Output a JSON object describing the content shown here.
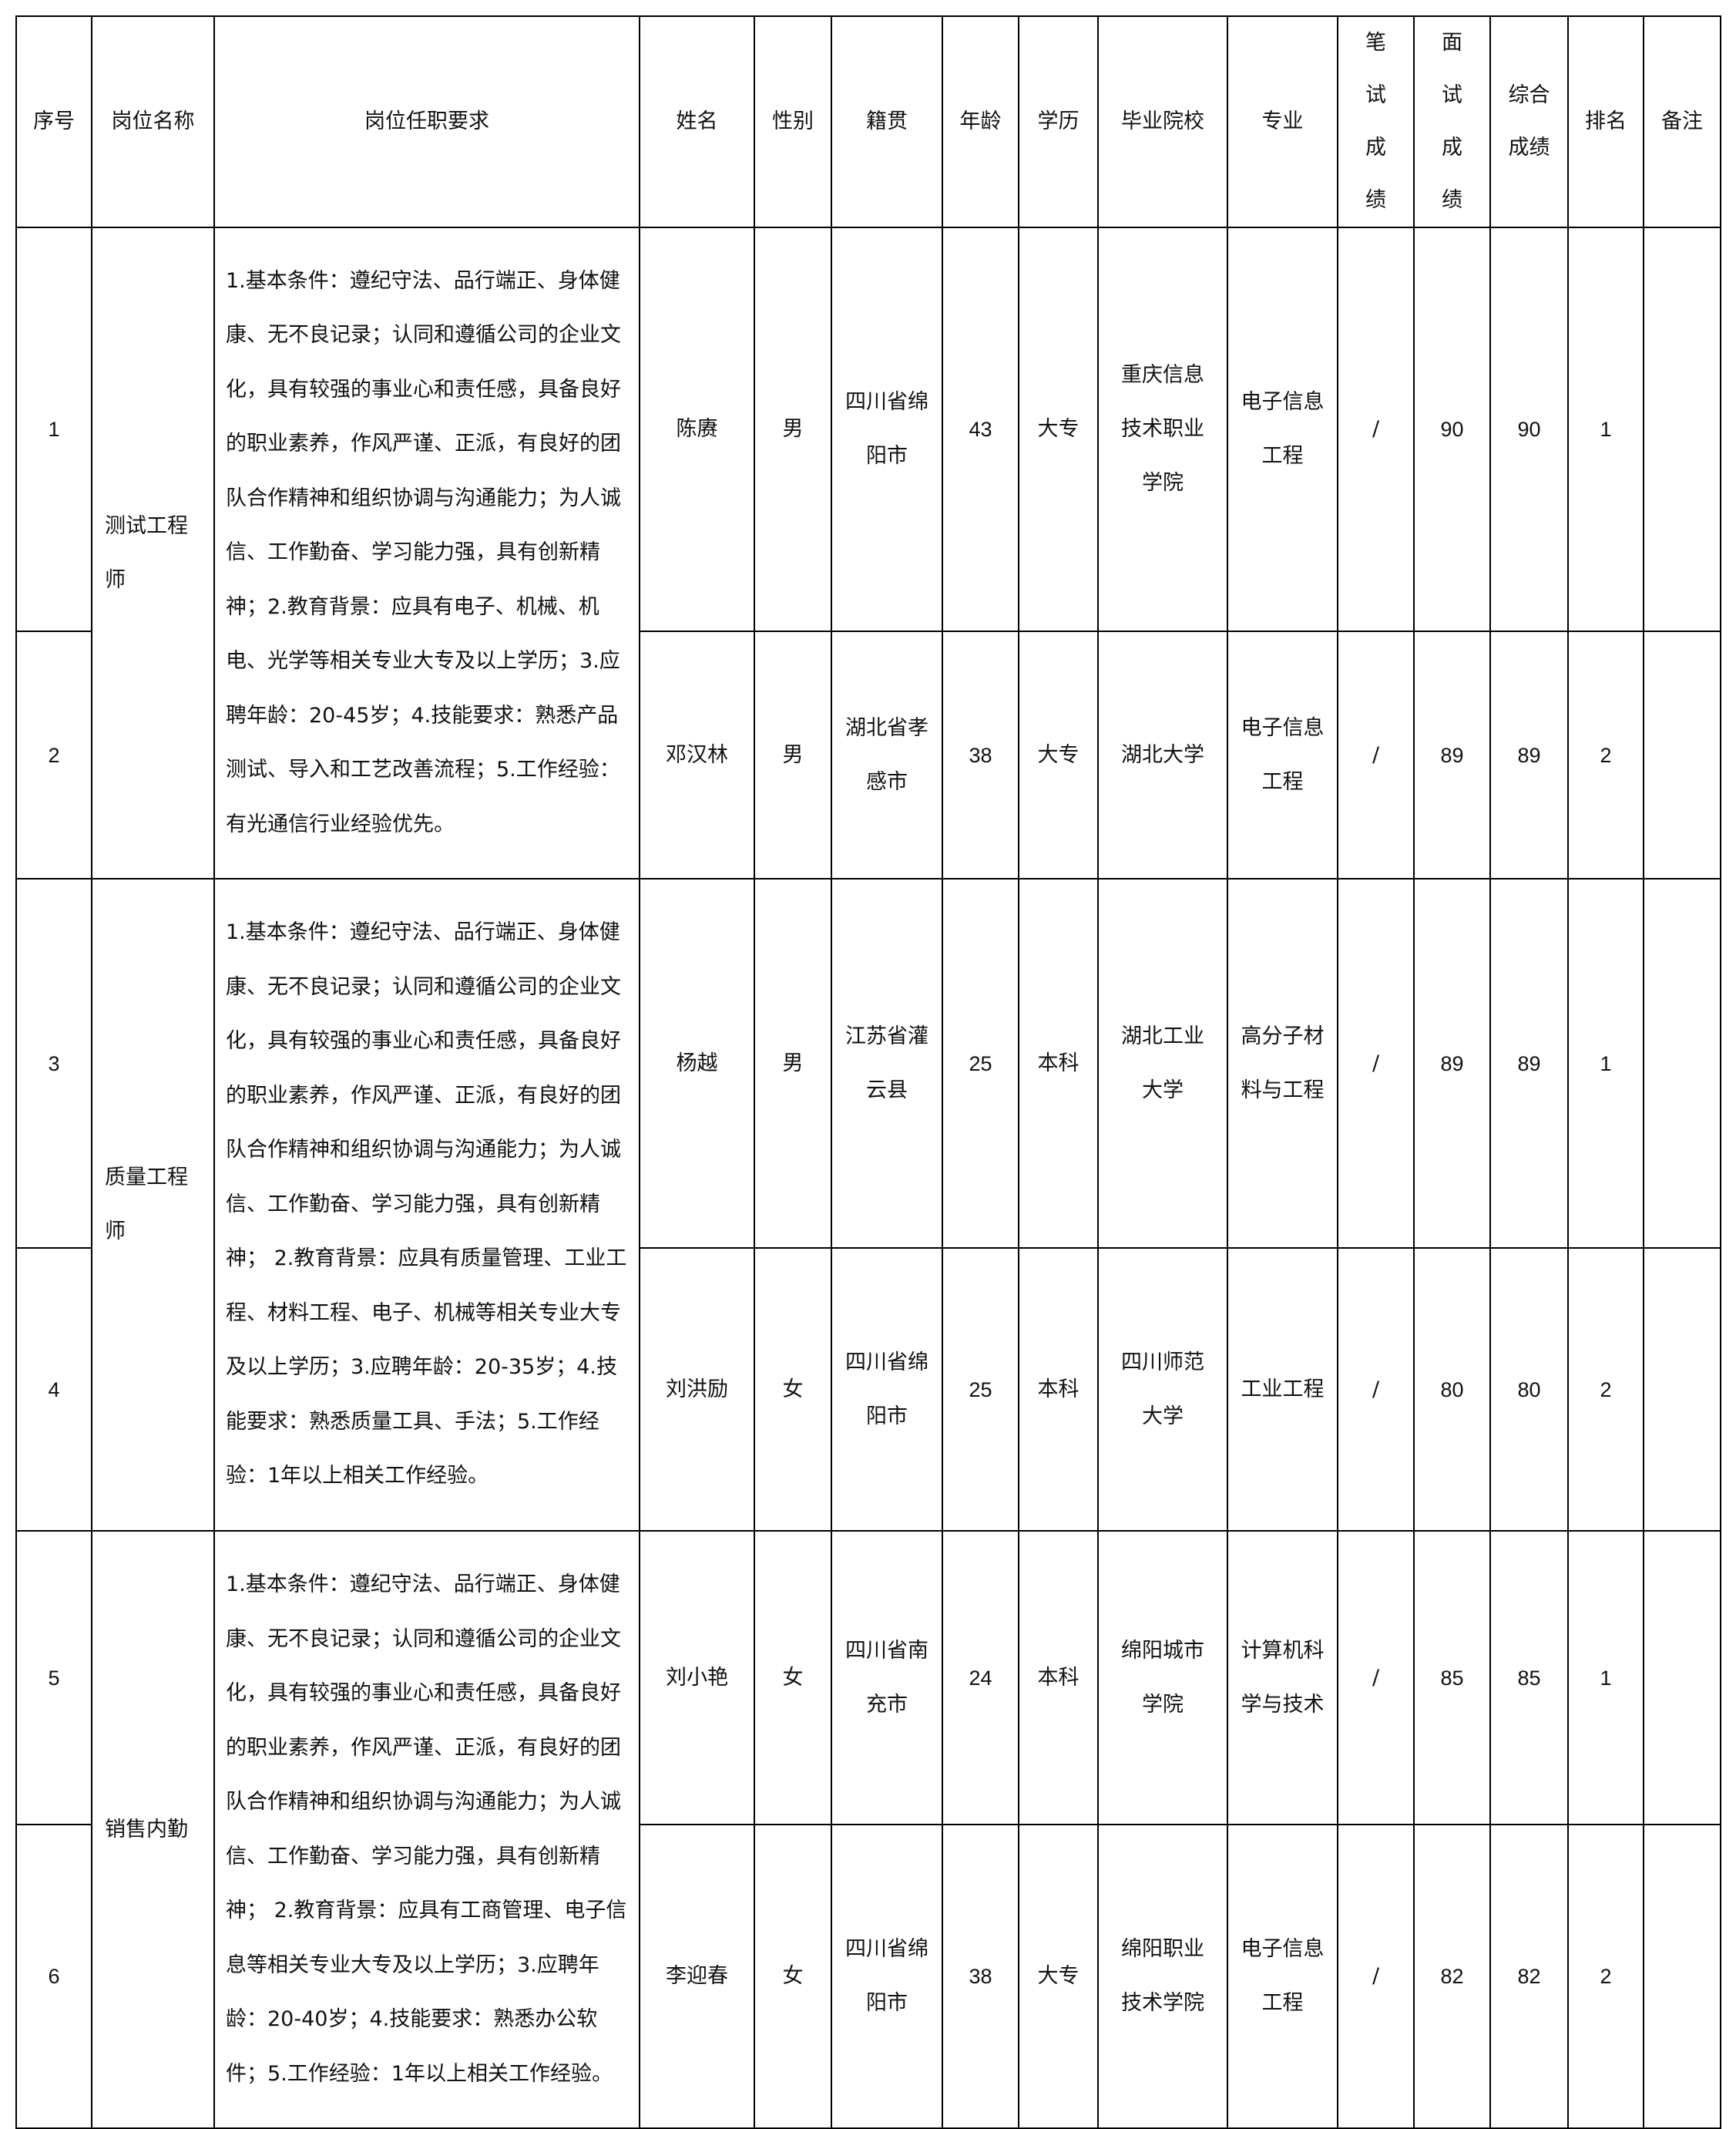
{
  "headers": [
    "序号",
    "岗位名称",
    "岗位任职要求",
    "姓名",
    "性别",
    "籍贯",
    "年龄",
    "学历",
    "毕业院校",
    "专业",
    "笔试成绩",
    "面试成绩",
    "综合成绩",
    "排名",
    "备注"
  ],
  "positions": [
    {
      "title": "测试工程师",
      "requirements": "1.基本条件：遵纪守法、品行端正、身体健康、无不良记录；认同和遵循公司的企业文化，具有较强的事业心和责任感，具备良好的职业素养，作风严谨、正派，有良好的团队合作精神和组织协调与沟通能力；为人诚信、工作勤奋、学习能力强，具有创新精神；2.教育背景：应具有电子、机械、机电、光学等相关专业大专及以上学历；3.应聘年龄：20-45岁；4.技能要求：熟悉产品测试、导入和工艺改善流程；5.工作经验：有光通信行业经验优先。",
      "candidates": [
        {
          "no": "1",
          "name": "陈赓",
          "gender": "男",
          "origin": "四川省绵阳市",
          "age": "43",
          "edu": "大专",
          "school": "重庆信息技术职业学院",
          "major": "电子信息工程",
          "written": "/",
          "interview": "90",
          "total": "90",
          "rank": "1",
          "note": ""
        },
        {
          "no": "2",
          "name": "邓汉林",
          "gender": "男",
          "origin": "湖北省孝感市",
          "age": "38",
          "edu": "大专",
          "school": "湖北大学",
          "major": "电子信息工程",
          "written": "/",
          "interview": "89",
          "total": "89",
          "rank": "2",
          "note": ""
        }
      ]
    },
    {
      "title": "质量工程师",
      "requirements": "1.基本条件：遵纪守法、品行端正、身体健康、无不良记录；认同和遵循公司的企业文化，具有较强的事业心和责任感，具备良好的职业素养，作风严谨、正派，有良好的团队合作精神和组织协调与沟通能力；为人诚信、工作勤奋、学习能力强，具有创新精神； 2.教育背景：应具有质量管理、工业工程、材料工程、电子、机械等相关专业大专及以上学历；3.应聘年龄：20-35岁；4.技能要求：熟悉质量工具、手法；5.工作经验：1年以上相关工作经验。",
      "candidates": [
        {
          "no": "3",
          "name": "杨越",
          "gender": "男",
          "origin": "江苏省灌云县",
          "age": "25",
          "edu": "本科",
          "school": "湖北工业大学",
          "major": "高分子材料与工程",
          "written": "/",
          "interview": "89",
          "total": "89",
          "rank": "1",
          "note": ""
        },
        {
          "no": "4",
          "name": "刘洪励",
          "gender": "女",
          "origin": "四川省绵阳市",
          "age": "25",
          "edu": "本科",
          "school": "四川师范大学",
          "major": "工业工程",
          "written": "/",
          "interview": "80",
          "total": "80",
          "rank": "2",
          "note": ""
        }
      ]
    },
    {
      "title": "销售内勤",
      "requirements": "1.基本条件：遵纪守法、品行端正、身体健康、无不良记录；认同和遵循公司的企业文化，具有较强的事业心和责任感，具备良好的职业素养，作风严谨、正派，有良好的团队合作精神和组织协调与沟通能力；为人诚信、工作勤奋、学习能力强，具有创新精神； 2.教育背景：应具有工商管理、电子信息等相关专业大专及以上学历；3.应聘年龄：20-40岁；4.技能要求：熟悉办公软件；5.工作经验：1年以上相关工作经验。",
      "candidates": [
        {
          "no": "5",
          "name": "刘小艳",
          "gender": "女",
          "origin": "四川省南充市",
          "age": "24",
          "edu": "本科",
          "school": "绵阳城市学院",
          "major": "计算机科学与技术",
          "written": "/",
          "interview": "85",
          "total": "85",
          "rank": "1",
          "note": ""
        },
        {
          "no": "6",
          "name": "李迎春",
          "gender": "女",
          "origin": "四川省绵阳市",
          "age": "38",
          "edu": "大专",
          "school": "绵阳职业技术学院",
          "major": "电子信息工程",
          "written": "/",
          "interview": "82",
          "total": "82",
          "rank": "2",
          "note": ""
        }
      ]
    }
  ]
}
